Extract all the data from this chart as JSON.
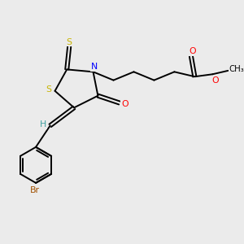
{
  "background_color": "#ebebeb",
  "atom_colors": {
    "S": "#c8b400",
    "N": "#0000ff",
    "O": "#ff0000",
    "Br": "#a05000",
    "C": "#000000",
    "H": "#40a0a0"
  },
  "bond_lw": 1.4,
  "dbo": 0.055
}
